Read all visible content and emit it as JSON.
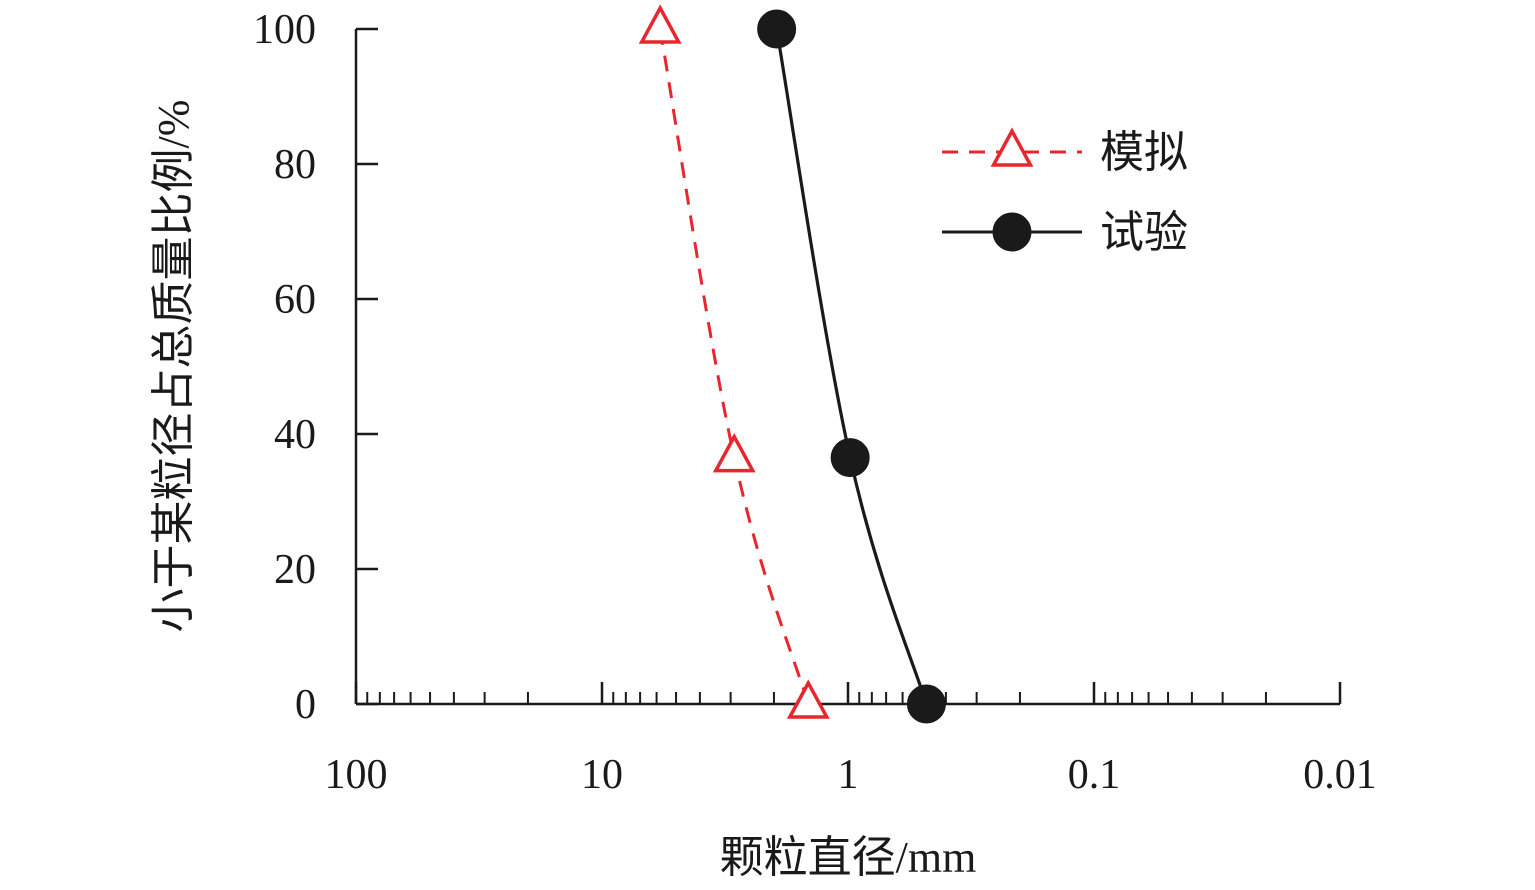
{
  "chart_data": {
    "type": "line",
    "x_scale": "log",
    "x_reversed": true,
    "xlim": [
      100,
      0.01
    ],
    "ylim": [
      0,
      100
    ],
    "xlabel": "颗粒直径/mm",
    "ylabel": "小于某粒径占总质量比例/%",
    "x_tick_labels": [
      "100",
      "10",
      "1",
      "0.1",
      "0.01"
    ],
    "x_ticks": [
      100,
      10,
      1,
      0.1,
      0.01
    ],
    "y_ticks": [
      0,
      20,
      40,
      60,
      80,
      100
    ],
    "y_tick_labels": [
      "0",
      "20",
      "40",
      "60",
      "80",
      "100"
    ],
    "legend_position": "top-right",
    "series": [
      {
        "name": "模拟",
        "color": "#e8262d",
        "line_style": "dashed",
        "marker": "open-triangle",
        "x": [
          5.8,
          2.9,
          1.45
        ],
        "y": [
          100,
          36.5,
          0
        ]
      },
      {
        "name": "试验",
        "color": "#1a1a1a",
        "line_style": "solid",
        "marker": "filled-circle",
        "x": [
          1.95,
          0.98,
          0.48
        ],
        "y": [
          100,
          36.5,
          0
        ]
      }
    ]
  }
}
